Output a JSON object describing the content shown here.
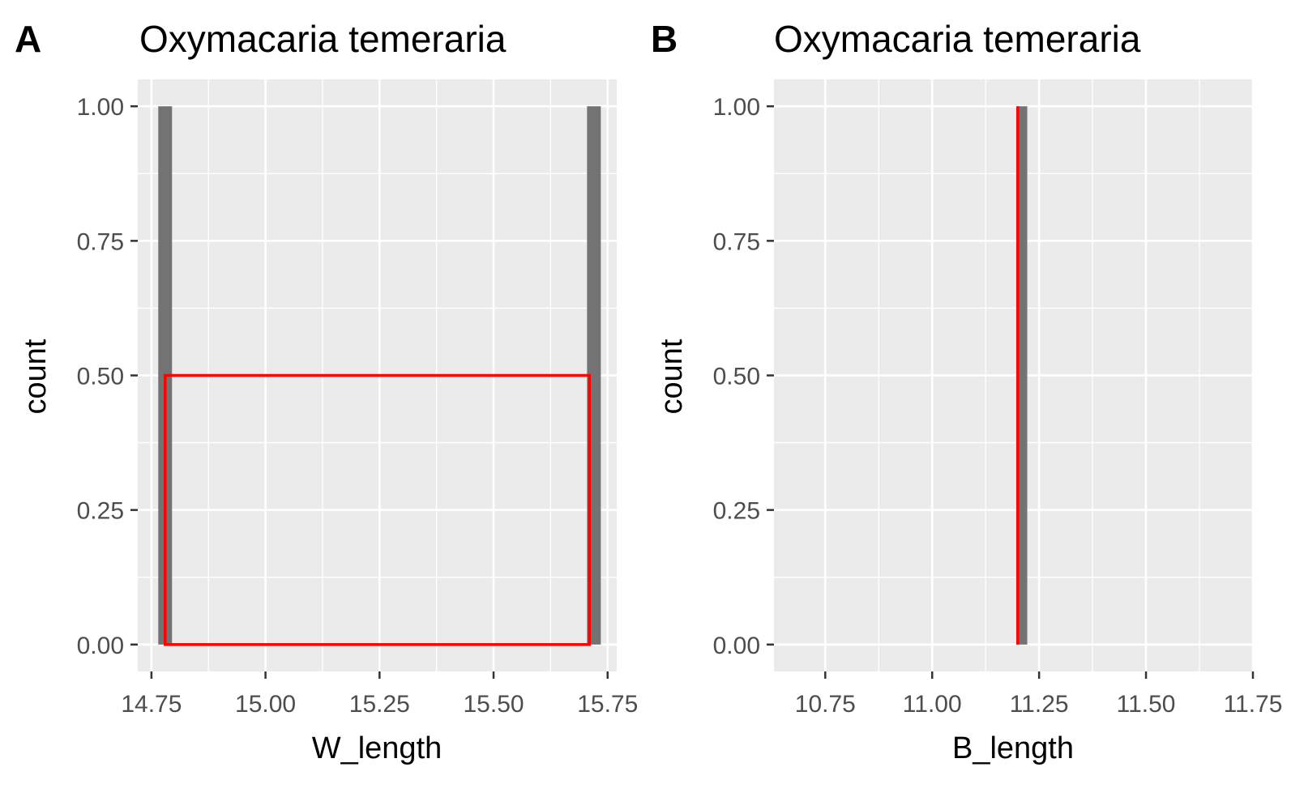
{
  "chart_data": [
    {
      "type": "bar",
      "panel_tag": "A",
      "title": "Oxymacaria temeraria",
      "xlabel": "W_length",
      "ylabel": "count",
      "xlim": [
        14.72,
        15.77
      ],
      "ylim": [
        -0.05,
        1.05
      ],
      "x_ticks": [
        "14.75",
        "15.00",
        "15.25",
        "15.50",
        "15.75"
      ],
      "y_ticks": [
        "0.00",
        "0.25",
        "0.50",
        "0.75",
        "1.00"
      ],
      "grid": true,
      "bar_color": "#737373",
      "overlay_color": "#ff0000",
      "bars": [
        {
          "x": 14.78,
          "count": 1
        },
        {
          "x": 15.72,
          "count": 1
        }
      ],
      "overlay_rect": {
        "x_min": 14.78,
        "x_max": 15.71,
        "y_min": 0,
        "y_max": 0.5
      }
    },
    {
      "type": "bar",
      "panel_tag": "B",
      "title": "Oxymacaria temeraria",
      "xlabel": "B_length",
      "ylabel": "count",
      "xlim": [
        10.63,
        11.75
      ],
      "ylim": [
        -0.05,
        1.05
      ],
      "x_ticks": [
        "10.75",
        "11.00",
        "11.25",
        "11.50",
        "11.75"
      ],
      "y_ticks": [
        "0.00",
        "0.25",
        "0.50",
        "0.75",
        "1.00"
      ],
      "grid": true,
      "bar_color": "#737373",
      "overlay_color": "#ff0000",
      "bars": [
        {
          "x": 11.21,
          "count": 1
        }
      ],
      "overlay_vline": {
        "x": 11.2,
        "y_min": 0,
        "y_max": 1
      }
    }
  ]
}
